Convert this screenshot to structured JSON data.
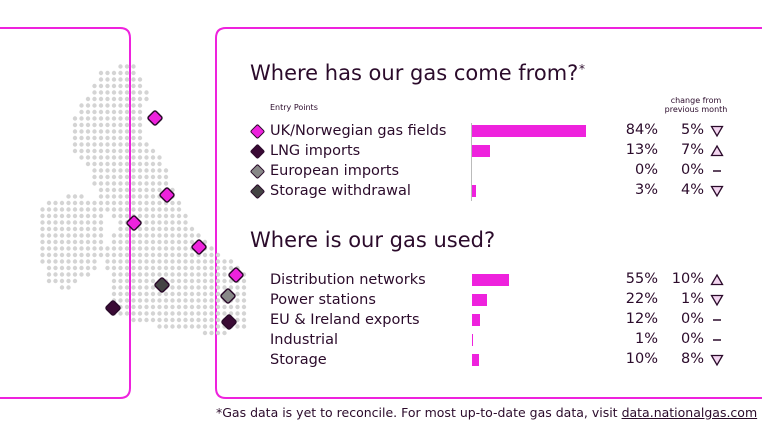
{
  "sections": [
    {
      "title": "Where has our gas come from?",
      "title_mark": "*",
      "column_header": "Entry Points",
      "change_header": "change from previous month",
      "rows": [
        {
          "label": "UK/Norwegian gas fields",
          "value": 84,
          "value_label": "84%",
          "change": 5,
          "change_label": "5%",
          "trend": "down",
          "color": "#ee22dd"
        },
        {
          "label": "LNG imports",
          "value": 13,
          "value_label": "13%",
          "change": 7,
          "change_label": "7%",
          "trend": "up",
          "color": "#3a0a35"
        },
        {
          "label": "European imports",
          "value": 0,
          "value_label": "0%",
          "change": 0,
          "change_label": "0%",
          "trend": "none",
          "color": "#888888"
        },
        {
          "label": "Storage withdrawal",
          "value": 3,
          "value_label": "3%",
          "change": 4,
          "change_label": "4%",
          "trend": "down",
          "color": "#444444"
        }
      ]
    },
    {
      "title": "Where is our gas used?",
      "rows": [
        {
          "label": "Distribution networks",
          "value": 55,
          "value_label": "55%",
          "change": 10,
          "change_label": "10%",
          "trend": "up"
        },
        {
          "label": "Power stations",
          "value": 22,
          "value_label": "22%",
          "change": 1,
          "change_label": "1%",
          "trend": "down"
        },
        {
          "label": "EU & Ireland exports",
          "value": 12,
          "value_label": "12%",
          "change": 0,
          "change_label": "0%",
          "trend": "none"
        },
        {
          "label": "Industrial",
          "value": 1,
          "value_label": "1%",
          "change": 0,
          "change_label": "0%",
          "trend": "none"
        },
        {
          "label": "Storage",
          "value": 10,
          "value_label": "10%",
          "change": 8,
          "change_label": "8%",
          "trend": "down"
        }
      ]
    }
  ],
  "bar_color": "#ee22dd",
  "footer": {
    "text": "*Gas data is yet to reconcile. For most up-to-date gas data, visit ",
    "link": "data.nationalgas.com"
  }
}
